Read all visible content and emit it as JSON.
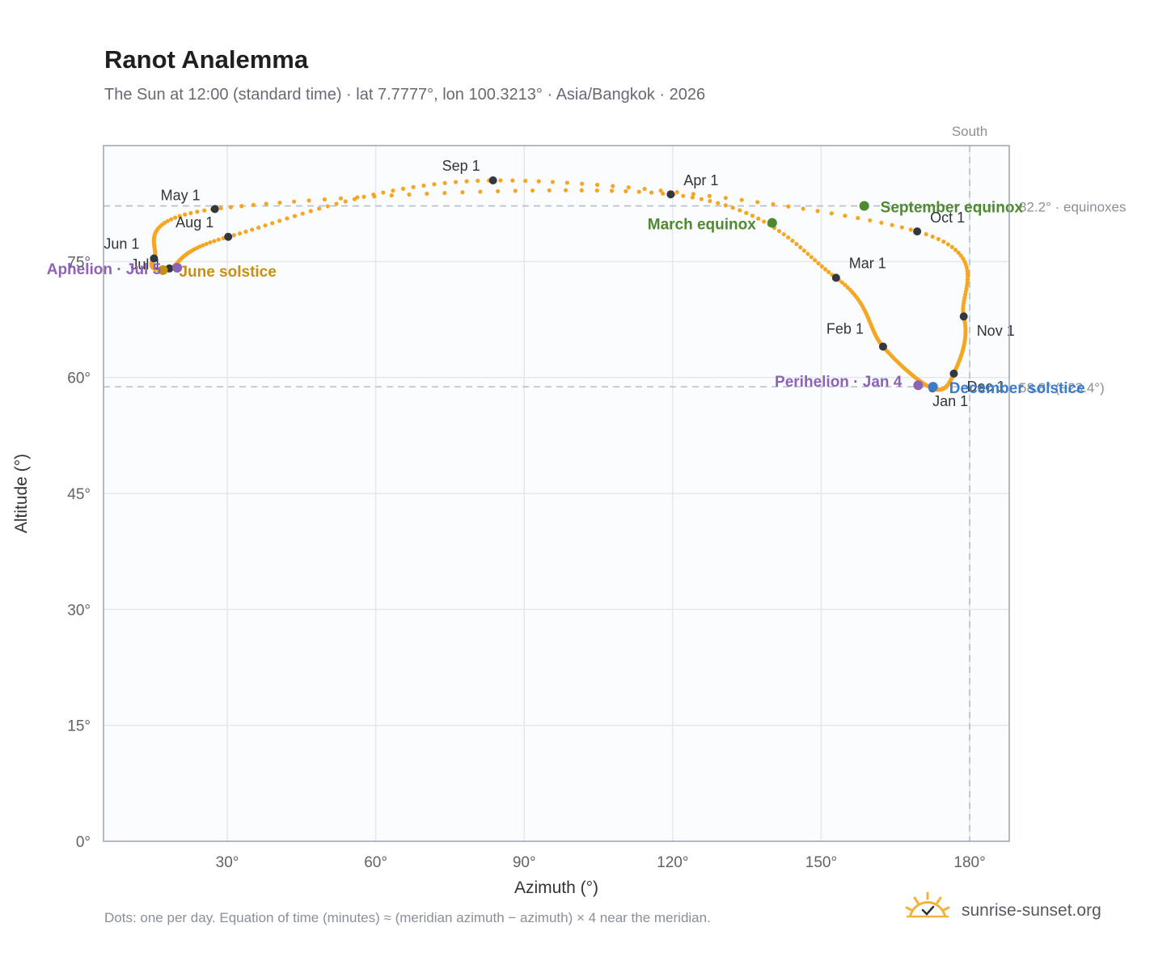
{
  "header": {
    "title": "Ranot Analemma",
    "subtitle": "The Sun at 12:00 (standard time) · lat 7.7777°, lon 100.3213° · Asia/Bangkok · 2026"
  },
  "footer": {
    "note": "Dots: one per day. Equation of time (minutes) ≈ (meridian azimuth − azimuth) × 4 near the meridian.",
    "brand": "sunrise-sunset.org"
  },
  "colors": {
    "curve": "#f5a623",
    "month_dot": "#333840",
    "equinox": "#4f8a2e",
    "june_solstice": "#c8900e",
    "december_solstice": "#3d7cc9",
    "apsis": "#8e63b5",
    "reference": "#b6bfc9"
  },
  "chart_data": {
    "type": "scatter",
    "xlabel": "Azimuth (°)",
    "ylabel": "Altitude (°)",
    "xlim": [
      5,
      188
    ],
    "ylim": [
      0,
      90
    ],
    "x_ticks": [
      {
        "value": 30,
        "label": "30°"
      },
      {
        "value": 60,
        "label": "60°"
      },
      {
        "value": 90,
        "label": "90°"
      },
      {
        "value": 120,
        "label": "120°"
      },
      {
        "value": 150,
        "label": "150°"
      },
      {
        "value": 180,
        "label": "180°"
      }
    ],
    "y_ticks": [
      {
        "value": 0,
        "label": "0°"
      },
      {
        "value": 15,
        "label": "15°"
      },
      {
        "value": 30,
        "label": "30°"
      },
      {
        "value": 45,
        "label": "45°"
      },
      {
        "value": 60,
        "label": "60°"
      },
      {
        "value": 75,
        "label": "75°"
      }
    ],
    "grid": true,
    "meridian": {
      "azimuth": 180,
      "label": "South"
    },
    "reference_lines": [
      {
        "altitude": 82.2,
        "label": "82.2° · equinoxes"
      },
      {
        "altitude": 58.8,
        "label": "58.8° (−23.4°)"
      }
    ],
    "month_points": [
      {
        "label": "Jan 1",
        "azimuth": 172.5,
        "altitude": 58.6
      },
      {
        "label": "Feb 1",
        "azimuth": 162.5,
        "altitude": 64.0
      },
      {
        "label": "Mar 1",
        "azimuth": 153.0,
        "altitude": 72.9
      },
      {
        "label": "Apr 1",
        "azimuth": 119.6,
        "altitude": 83.7
      },
      {
        "label": "May 1",
        "azimuth": 27.5,
        "altitude": 81.8
      },
      {
        "label": "Jun 1",
        "azimuth": 15.2,
        "altitude": 75.4
      },
      {
        "label": "Jul 1",
        "azimuth": 18.3,
        "altitude": 74.1
      },
      {
        "label": "Aug 1",
        "azimuth": 30.2,
        "altitude": 78.2
      },
      {
        "label": "Sep 1",
        "azimuth": 83.7,
        "altitude": 85.5
      },
      {
        "label": "Oct 1",
        "azimuth": 169.4,
        "altitude": 78.9
      },
      {
        "label": "Nov 1",
        "azimuth": 178.8,
        "altitude": 67.9
      },
      {
        "label": "Dec 1",
        "azimuth": 176.8,
        "altitude": 60.5
      }
    ],
    "events": [
      {
        "label": "March equinox",
        "azimuth": 140.1,
        "altitude": 80.0,
        "kind": "equinox"
      },
      {
        "label": "September equinox",
        "azimuth": 158.7,
        "altitude": 82.2,
        "kind": "equinox"
      },
      {
        "label": "June solstice",
        "azimuth": 17.0,
        "altitude": 73.9,
        "kind": "june_solstice"
      },
      {
        "label": "December solstice",
        "azimuth": 172.6,
        "altitude": 58.8,
        "kind": "december_solstice"
      },
      {
        "label": "Perihelion · Jan 4",
        "azimuth": 169.6,
        "altitude": 59.0,
        "kind": "apsis"
      },
      {
        "label": "Aphelion · Jul 5",
        "azimuth": 19.9,
        "altitude": 74.2,
        "kind": "apsis"
      }
    ]
  }
}
